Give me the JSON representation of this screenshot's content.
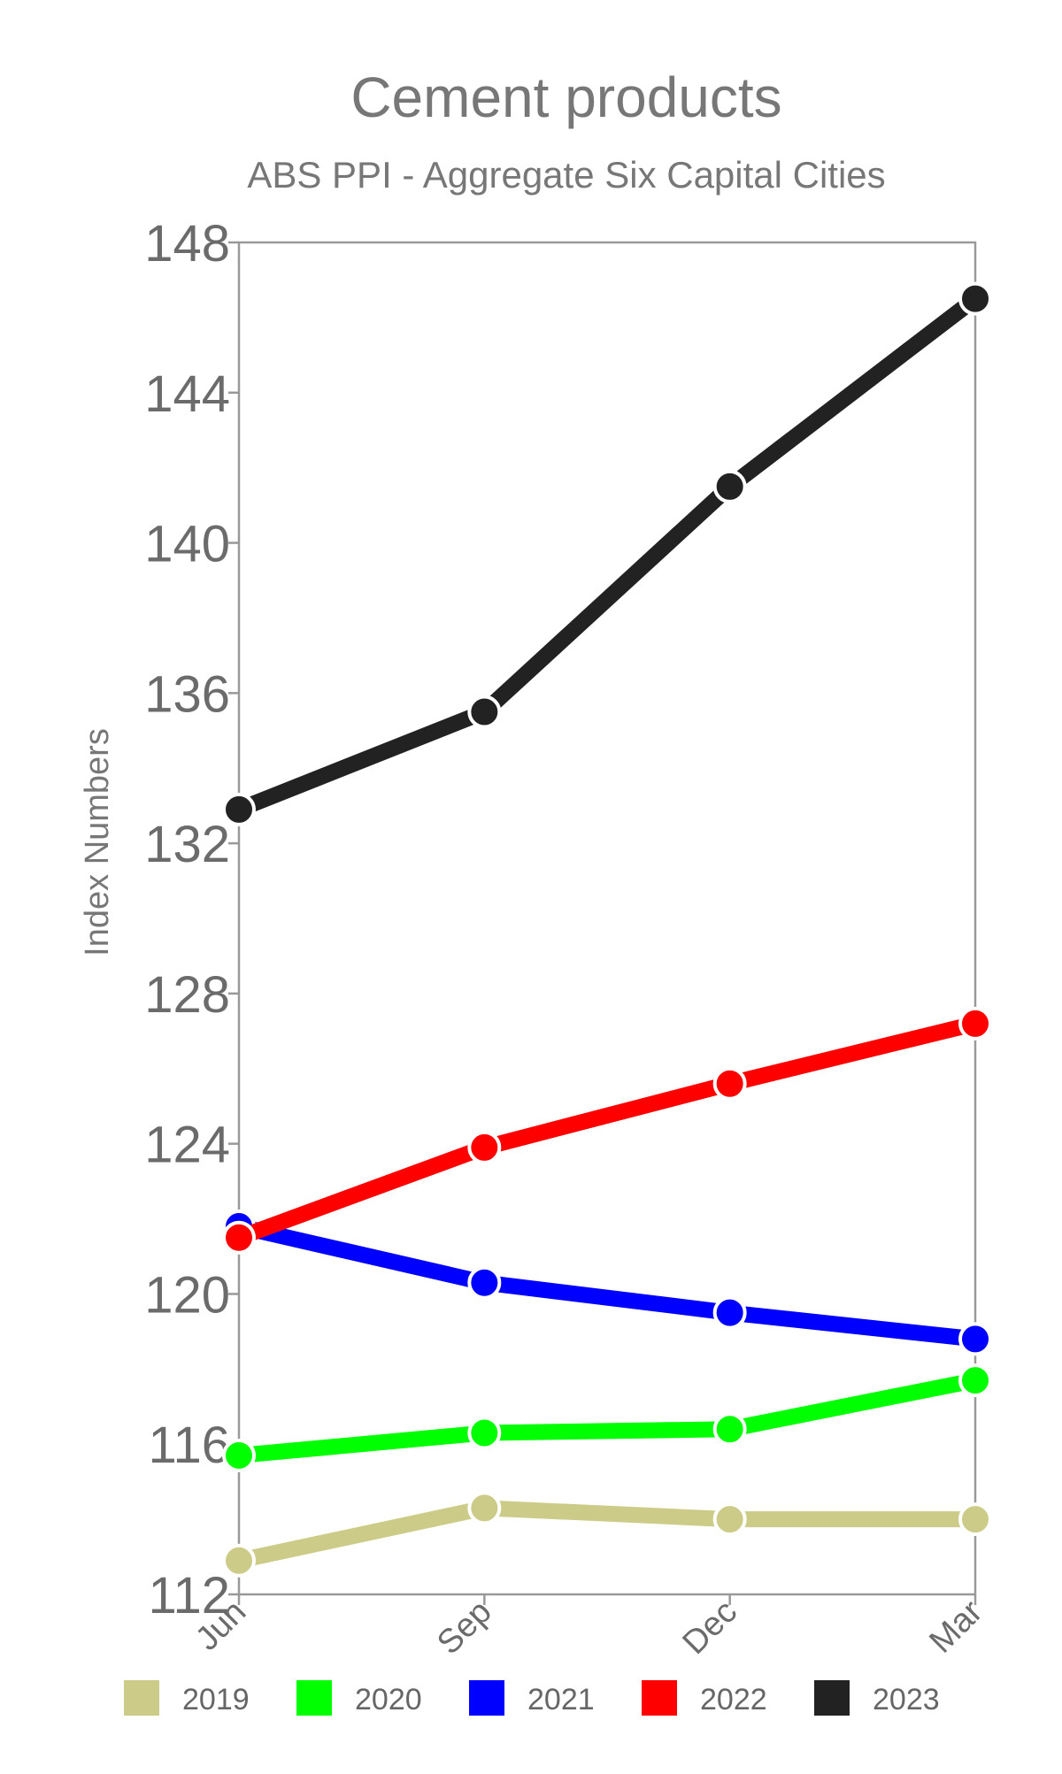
{
  "chart_data": {
    "type": "line",
    "title": "Cement products",
    "subtitle": "ABS PPI - Aggregate Six Capital Cities",
    "xlabel": "",
    "ylabel": "Index Numbers",
    "categories": [
      "Jun",
      "Sep",
      "Dec",
      "Mar"
    ],
    "ylim": [
      112,
      148
    ],
    "yticks": [
      112,
      116,
      120,
      124,
      128,
      132,
      136,
      140,
      144,
      148
    ],
    "grid": false,
    "legend_position": "bottom",
    "series": [
      {
        "name": "2019",
        "color": "#cccc88",
        "values": [
          112.9,
          114.3,
          114.0,
          114.0
        ]
      },
      {
        "name": "2020",
        "color": "#00ff00",
        "values": [
          115.7,
          116.3,
          116.4,
          117.7
        ]
      },
      {
        "name": "2021",
        "color": "#0000ff",
        "values": [
          121.8,
          120.3,
          119.5,
          118.8
        ]
      },
      {
        "name": "2022",
        "color": "#ff0000",
        "values": [
          121.5,
          123.9,
          125.6,
          127.2
        ]
      },
      {
        "name": "2023",
        "color": "#222222",
        "values": [
          132.9,
          135.5,
          141.5,
          146.5
        ]
      }
    ]
  }
}
